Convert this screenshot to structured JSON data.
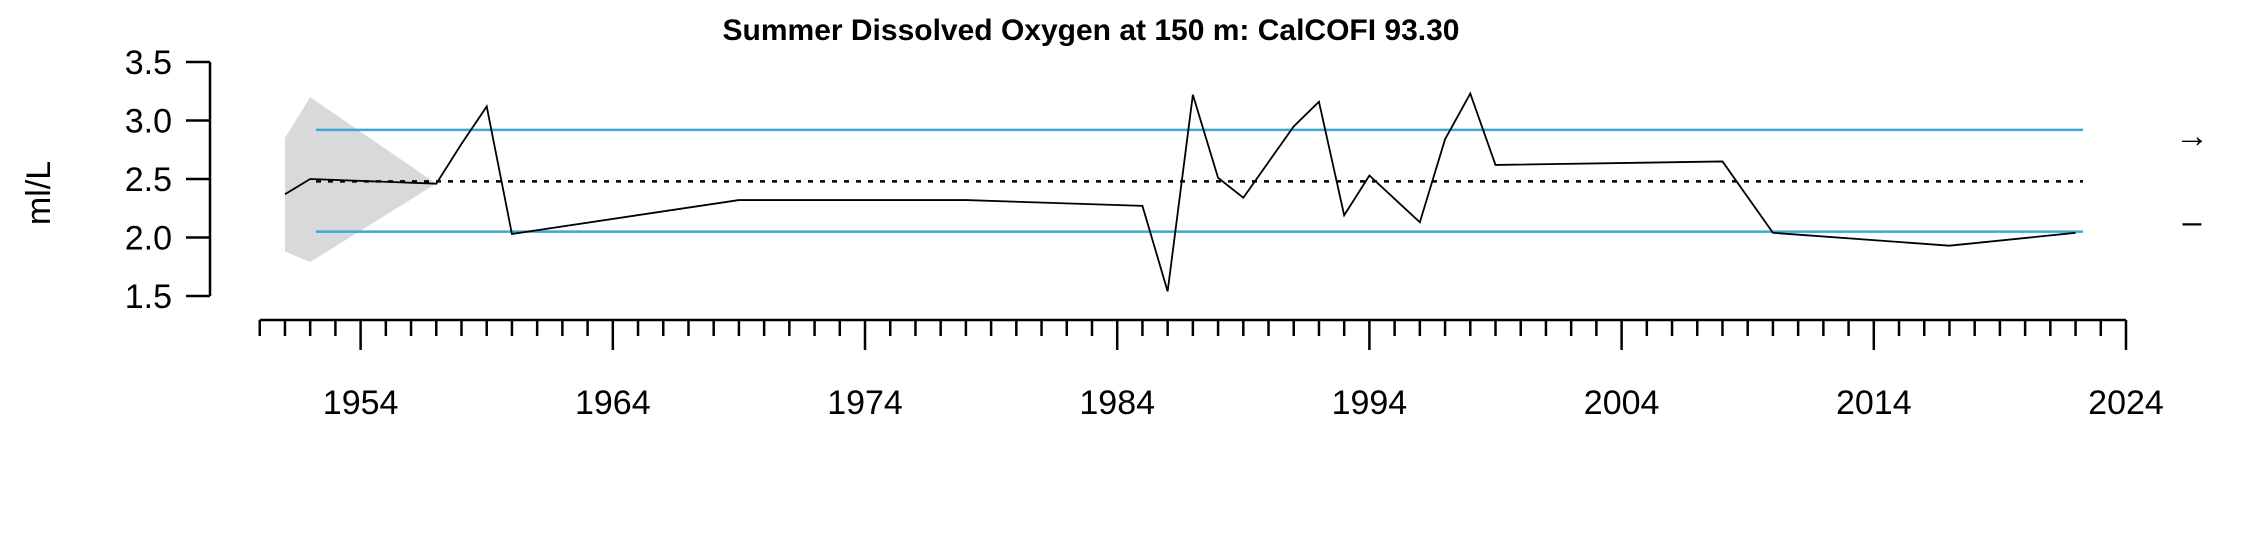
{
  "chart_data": {
    "type": "line",
    "title": "Summer Dissolved Oxygen at 150 m: CalCOFI 93.30",
    "xlabel": "",
    "ylabel": "ml/L",
    "xlim": [
      1950,
      2024
    ],
    "ylim": [
      1.5,
      3.5
    ],
    "y_ticks": [
      "1.5",
      "2.0",
      "2.5",
      "3.0",
      "3.5"
    ],
    "x_tick_labels": [
      "1954",
      "1964",
      "1974",
      "1984",
      "1994",
      "2004",
      "2014",
      "2024"
    ],
    "x_tick_label_years": [
      1954,
      1964,
      1974,
      1984,
      1994,
      2004,
      2014,
      2024
    ],
    "x_minor_tick_step_years": 1,
    "series": [
      {
        "x": [
          1951,
          1952,
          1957,
          1958,
          1959,
          1960,
          1969,
          1978,
          1985,
          1986,
          1987,
          1988,
          1989,
          1991,
          1992,
          1993,
          1994,
          1996,
          1997,
          1998,
          1999,
          2008,
          2010,
          2017,
          2022
        ],
        "values": [
          2.37,
          2.5,
          2.46,
          2.8,
          3.12,
          2.03,
          2.32,
          2.32,
          2.27,
          1.54,
          3.22,
          2.51,
          2.34,
          2.95,
          3.16,
          2.19,
          2.53,
          2.13,
          2.84,
          3.23,
          2.62,
          2.65,
          2.04,
          1.93,
          2.04
        ],
        "color": "#000000"
      }
    ],
    "reference_lines": {
      "mean": 2.48,
      "upper_sd": 2.92,
      "lower_sd": 2.05,
      "mean_style": "dotted black",
      "sd_color": "#3fa8d5"
    },
    "shaded_region": {
      "x_start": 1951,
      "x_peak": 1952,
      "x_end": 1957,
      "upper_at_start": 2.85,
      "upper_at_peak": 3.2,
      "lower_at_start": 1.88,
      "lower_at_peak": 1.79,
      "value_at_end": 2.46,
      "color": "#d9d9d9"
    },
    "trend_symbols": [
      "→",
      "–"
    ],
    "grid": false,
    "legend": "none"
  }
}
